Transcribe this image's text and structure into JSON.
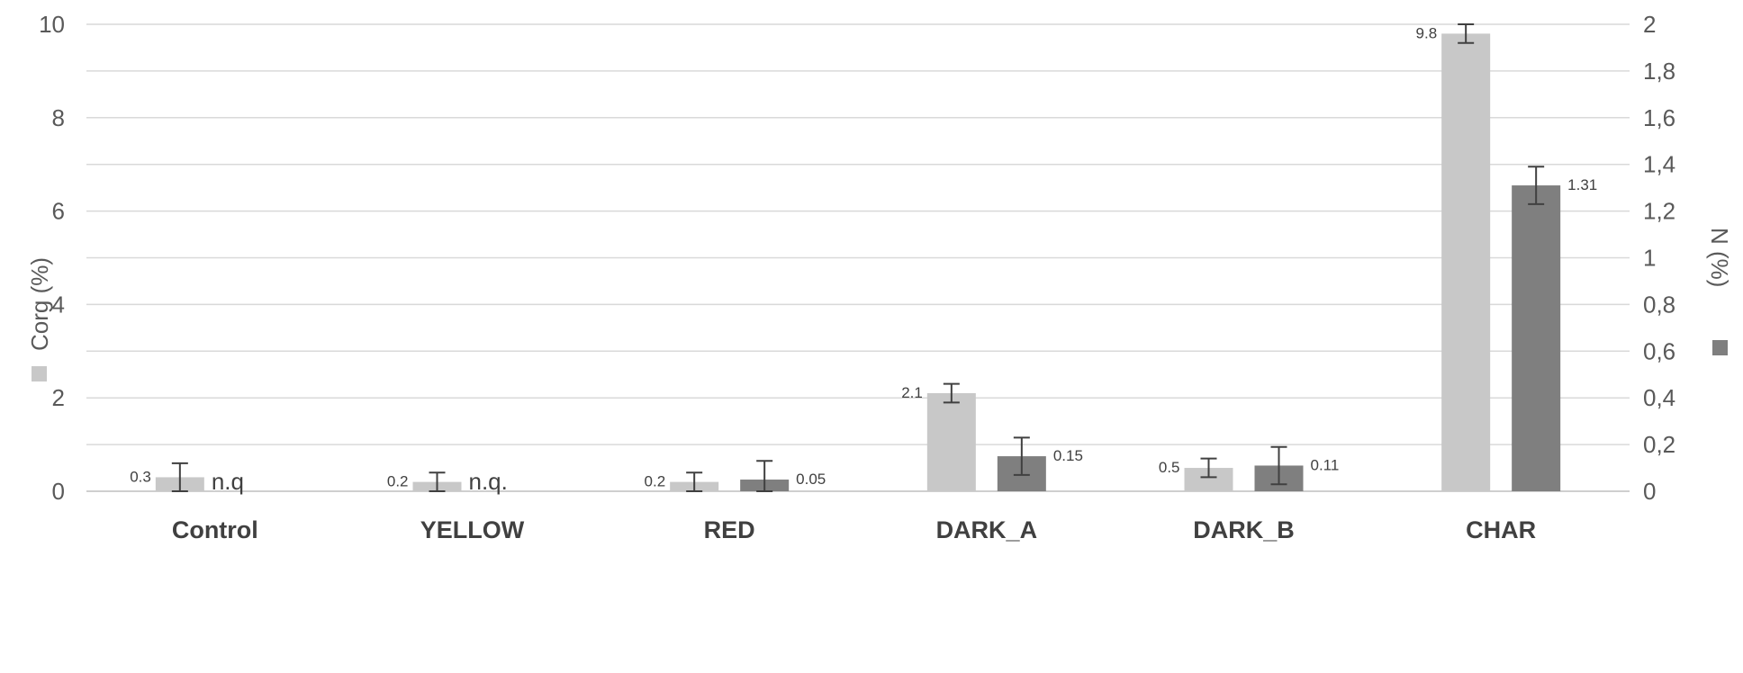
{
  "chart_data": {
    "type": "bar",
    "categories": [
      "Control",
      "YELLOW",
      "RED",
      "DARK_A",
      "DARK_B",
      "CHAR"
    ],
    "left_axis": {
      "label": "Corg (%)",
      "ylim": [
        0,
        10
      ],
      "ticks": [
        "0",
        "2",
        "4",
        "6",
        "8",
        "10"
      ]
    },
    "right_axis": {
      "label": "N (%)",
      "ylim": [
        0,
        2
      ],
      "ticks": [
        "0",
        "0,2",
        "0,4",
        "0,6",
        "0,8",
        "1",
        "1,2",
        "1,4",
        "1,6",
        "1,8",
        "2"
      ]
    },
    "grid": true,
    "series": [
      {
        "name": "Corg (%)",
        "axis": "left",
        "color": "#c8c8c8",
        "values": [
          0.3,
          0.2,
          0.2,
          2.1,
          0.5,
          9.8
        ],
        "errors": [
          0.3,
          0.2,
          0.2,
          0.2,
          0.2,
          0.2
        ],
        "labels": [
          "0.3",
          "0.2",
          "0.2",
          "2.1",
          "0.5",
          "9.8"
        ]
      },
      {
        "name": "N (%)",
        "axis": "right",
        "color": "#7f7f7f",
        "values": [
          null,
          null,
          0.05,
          0.15,
          0.11,
          1.31
        ],
        "errors": [
          null,
          null,
          0.08,
          0.08,
          0.08,
          0.08
        ],
        "labels": [
          "n.q",
          "n.q.",
          "0.05",
          "0.15",
          "0.11",
          "1.31"
        ]
      }
    ]
  }
}
